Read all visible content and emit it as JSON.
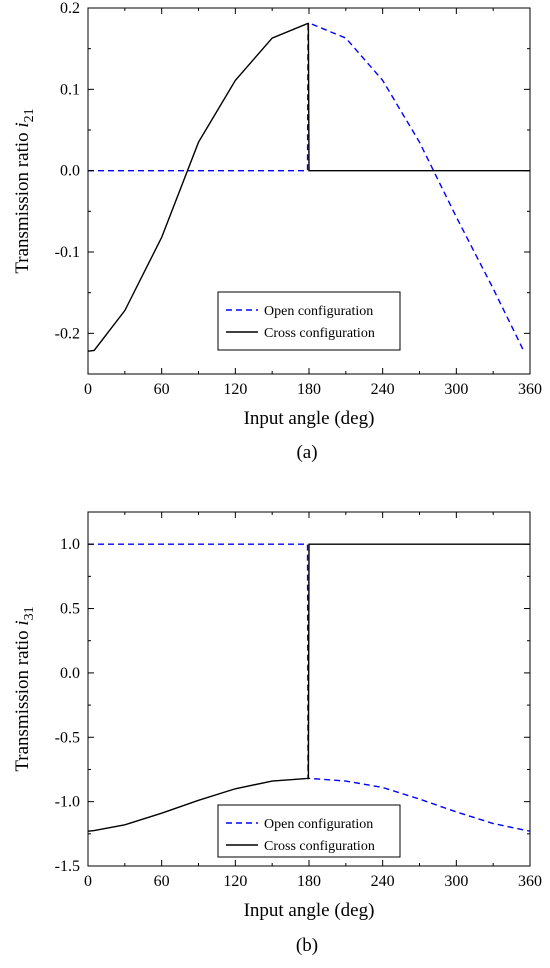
{
  "chart_data": [
    {
      "type": "line",
      "panel_label": "(a)",
      "xlabel": "Input angle (deg)",
      "ylabel_prefix": "Transmission ratio ",
      "ylabel_symbol": "i",
      "ylabel_subscript": "21",
      "xlim": [
        0,
        360
      ],
      "ylim": [
        -0.25,
        0.2
      ],
      "xticks": [
        0,
        60,
        120,
        180,
        240,
        300,
        360
      ],
      "yticks": [
        -0.2,
        -0.1,
        0.0,
        0.1,
        0.2
      ],
      "ytick_labels": [
        "-0.2",
        "-0.1",
        "0.0",
        "0.1",
        "0.2"
      ],
      "legend_position": "bottom-right",
      "series": [
        {
          "name": "Open configuration",
          "style": "dashed",
          "color": "#0000ff",
          "x": [
            0,
            30,
            60,
            90,
            120,
            150,
            178.8,
            179.2,
            180,
            181,
            210,
            240,
            270,
            300,
            330,
            355
          ],
          "y": [
            0,
            0,
            0,
            0,
            0,
            0,
            0,
            0.179,
            0.181,
            0.181,
            0.163,
            0.111,
            0.035,
            -0.057,
            -0.145,
            -0.222
          ]
        },
        {
          "name": "Cross configuration",
          "style": "solid",
          "color": "#000000",
          "x": [
            0,
            5,
            30,
            60,
            90,
            120,
            150,
            179,
            179.5,
            180,
            210,
            240,
            270,
            300,
            330,
            360
          ],
          "y": [
            -0.222,
            -0.221,
            -0.172,
            -0.082,
            0.035,
            0.111,
            0.163,
            0.181,
            0.181,
            0,
            0,
            0,
            0,
            0,
            0,
            0
          ]
        }
      ]
    },
    {
      "type": "line",
      "panel_label": "(b)",
      "xlabel": "Input angle (deg)",
      "ylabel_prefix": "Transmission ratio ",
      "ylabel_symbol": "i",
      "ylabel_subscript": "31",
      "xlim": [
        0,
        360
      ],
      "ylim": [
        -1.5,
        1.25
      ],
      "xticks": [
        0,
        60,
        120,
        180,
        240,
        300,
        360
      ],
      "yticks": [
        -1.5,
        -1.0,
        -0.5,
        0.0,
        0.5,
        1.0
      ],
      "ytick_labels": [
        "-1.5",
        "-1.0",
        "-0.5",
        "0.0",
        "0.5",
        "1.0"
      ],
      "legend_position": "bottom-right",
      "series": [
        {
          "name": "Open configuration",
          "style": "dashed",
          "color": "#0000ff",
          "x": [
            0,
            30,
            60,
            90,
            120,
            150,
            178.8,
            179.2,
            180,
            181,
            210,
            240,
            270,
            300,
            330,
            360
          ],
          "y": [
            1,
            1,
            1,
            1,
            1,
            1,
            1,
            -0.82,
            -0.82,
            -0.82,
            -0.84,
            -0.89,
            -0.98,
            -1.08,
            -1.17,
            -1.23
          ]
        },
        {
          "name": "Cross configuration",
          "style": "solid",
          "color": "#000000",
          "x": [
            0,
            5,
            30,
            60,
            90,
            120,
            150,
            179,
            179.5,
            180,
            210,
            240,
            270,
            300,
            330,
            360
          ],
          "y": [
            -1.23,
            -1.225,
            -1.18,
            -1.09,
            -0.99,
            -0.9,
            -0.84,
            -0.82,
            -0.82,
            1,
            1,
            1,
            1,
            1,
            1,
            1
          ]
        }
      ]
    }
  ]
}
